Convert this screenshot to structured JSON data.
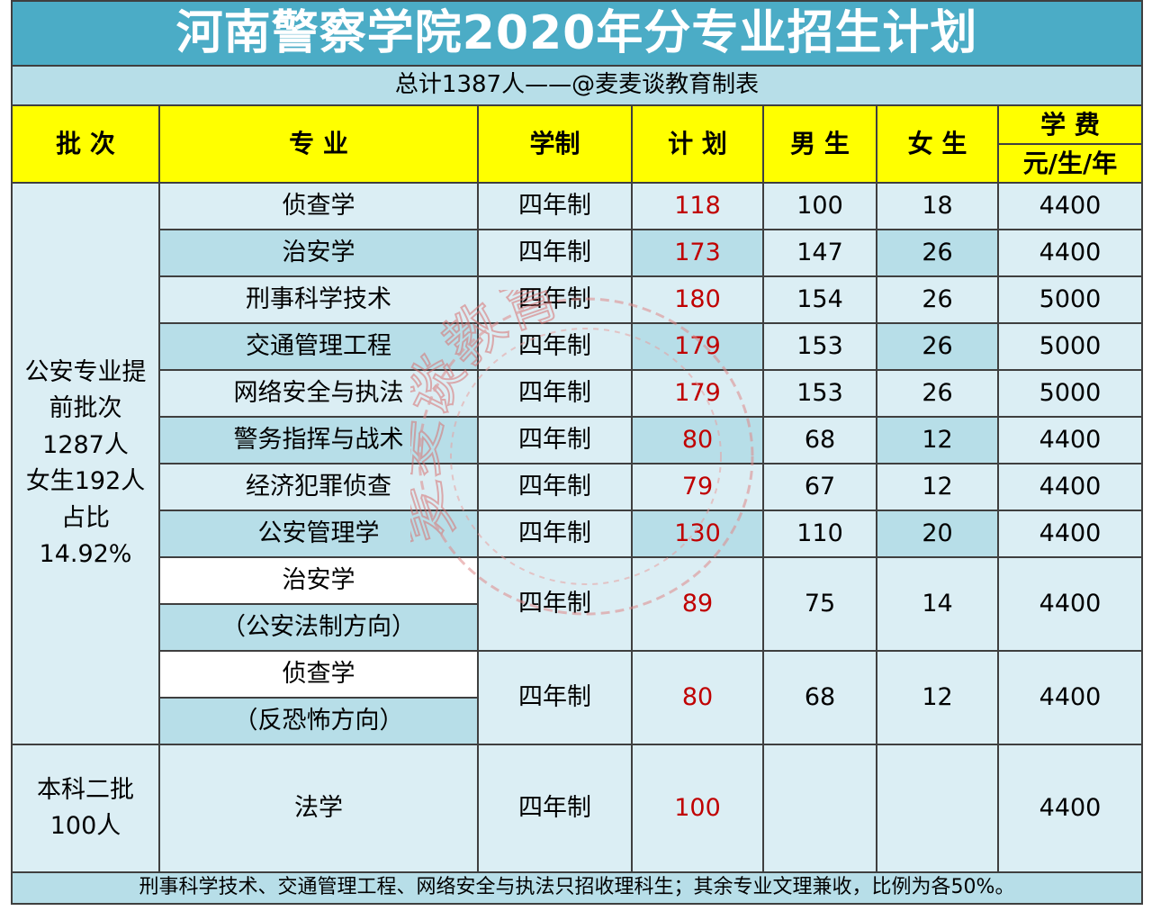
{
  "title": "河南警察学院2020年分专业招生计划",
  "subtitle": "总计1387人——@麦麦谈教育制表",
  "headers": {
    "batch": "批 次",
    "major": "专 业",
    "duration": "学制",
    "plan": "计 划",
    "male": "男 生",
    "female": "女 生",
    "tuition": "学 费",
    "tuition_unit": "元/生/年"
  },
  "batch1": {
    "line1": "公安专业提",
    "line2": "前批次",
    "line3": "1287人",
    "line4": "女生192人",
    "line5": "占比",
    "line6": "14.92%"
  },
  "batch2": {
    "line1": "本科二批",
    "line2": "100人"
  },
  "rows": [
    {
      "major": "侦查学",
      "duration": "四年制",
      "plan": "118",
      "male": "100",
      "female": "18",
      "tuition": "4400"
    },
    {
      "major": "治安学",
      "duration": "四年制",
      "plan": "173",
      "male": "147",
      "female": "26",
      "tuition": "4400"
    },
    {
      "major": "刑事科学技术",
      "duration": "四年制",
      "plan": "180",
      "male": "154",
      "female": "26",
      "tuition": "5000"
    },
    {
      "major": "交通管理工程",
      "duration": "四年制",
      "plan": "179",
      "male": "153",
      "female": "26",
      "tuition": "5000"
    },
    {
      "major": "网络安全与执法",
      "duration": "四年制",
      "plan": "179",
      "male": "153",
      "female": "26",
      "tuition": "5000"
    },
    {
      "major": "警务指挥与战术",
      "duration": "四年制",
      "plan": "80",
      "male": "68",
      "female": "12",
      "tuition": "4400"
    },
    {
      "major": "经济犯罪侦查",
      "duration": "四年制",
      "plan": "79",
      "male": "67",
      "female": "12",
      "tuition": "4400"
    },
    {
      "major": "公安管理学",
      "duration": "四年制",
      "plan": "130",
      "male": "110",
      "female": "20",
      "tuition": "4400"
    }
  ],
  "split_rows": [
    {
      "major_line1": "治安学",
      "major_line2": "（公安法制方向）",
      "duration": "四年制",
      "plan": "89",
      "male": "75",
      "female": "14",
      "tuition": "4400"
    },
    {
      "major_line1": "侦查学",
      "major_line2": "（反恐怖方向）",
      "duration": "四年制",
      "plan": "80",
      "male": "68",
      "female": "12",
      "tuition": "4400"
    }
  ],
  "law_row": {
    "major": "法学",
    "duration": "四年制",
    "plan": "100",
    "male": "",
    "female": "",
    "tuition": "4400"
  },
  "footer": "刑事科学技术、交通管理工程、网络安全与执法只招收理科生；其余专业文理兼收，比例为各50%。",
  "watermark": "麦麦谈教育",
  "colors": {
    "title_bg": "#4bacc6",
    "header_bg": "#ffff00",
    "plan_text": "#c00000",
    "row_light": "#dbeef4",
    "row_mid": "#b7dee8"
  }
}
